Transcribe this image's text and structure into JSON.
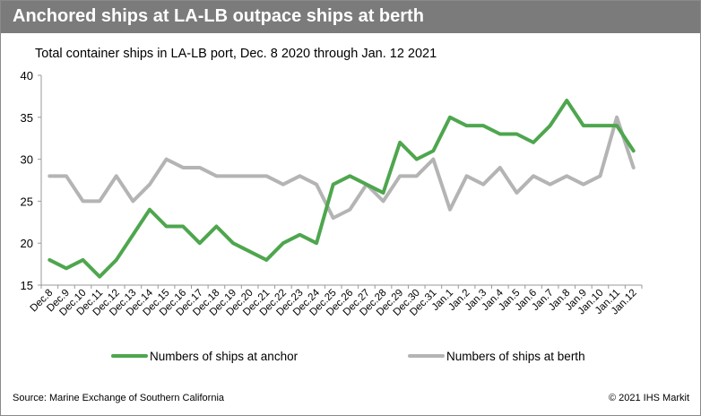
{
  "banner": {
    "title": "Anchored ships at LA-LB outpace ships at berth"
  },
  "footer": {
    "source": "Source: Marine Exchange of Southern California",
    "copyright": "© 2021 IHS Markit"
  },
  "colors": {
    "anchor": "#4ea64e",
    "berth": "#b4b4b4",
    "banner": "#7b7b7b"
  },
  "chart_data": {
    "type": "line",
    "title": "Total container ships in LA-LB port, Dec. 8 2020 through Jan. 12 2021",
    "xlabel": "",
    "ylabel": "",
    "ylim": [
      15,
      40
    ],
    "yticks": [
      15,
      20,
      25,
      30,
      35,
      40
    ],
    "grid": false,
    "legend": "bottom",
    "x": [
      "Dec.8",
      "Dec.9",
      "Dec.10",
      "Dec.11",
      "Dec.12",
      "Dec.13",
      "Dec.14",
      "Dec.15",
      "Dec.16",
      "Dec.17",
      "Dec.18",
      "Dec.19",
      "Dec.20",
      "Dec.21",
      "Dec.22",
      "Dec.23",
      "Dec.24",
      "Dec.25",
      "Dec.26",
      "Dec.27",
      "Dec.28",
      "Dec.29",
      "Dec.30",
      "Dec.31",
      "Jan.1",
      "Jan.2",
      "Jan.3",
      "Jan.4",
      "Jan.5",
      "Jan.6",
      "Jan.7",
      "Jan.8",
      "Jan.9",
      "Jan.10",
      "Jan.11",
      "Jan.12"
    ],
    "series": [
      {
        "name": "Numbers of ships at anchor",
        "values": [
          18,
          17,
          18,
          16,
          18,
          21,
          24,
          22,
          22,
          20,
          22,
          20,
          19,
          18,
          20,
          21,
          20,
          27,
          28,
          27,
          26,
          32,
          30,
          31,
          35,
          34,
          34,
          33,
          33,
          32,
          34,
          37,
          34,
          34,
          34,
          31
        ]
      },
      {
        "name": "Numbers of ships at berth",
        "values": [
          28,
          28,
          25,
          25,
          28,
          25,
          27,
          30,
          29,
          29,
          28,
          28,
          28,
          28,
          27,
          28,
          27,
          23,
          24,
          27,
          25,
          28,
          28,
          30,
          24,
          28,
          27,
          29,
          26,
          28,
          27,
          28,
          27,
          28,
          35,
          29
        ]
      }
    ]
  }
}
